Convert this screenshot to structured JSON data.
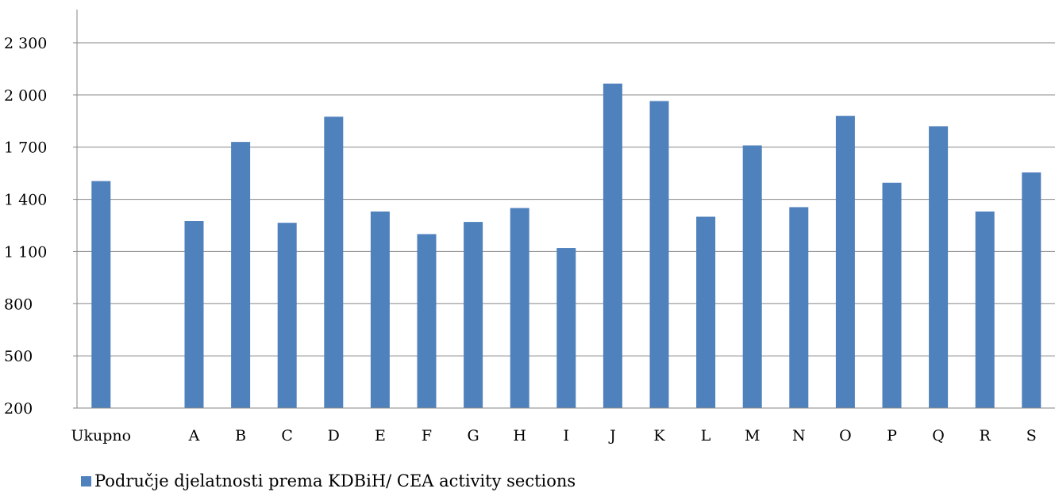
{
  "colors": {
    "bar": "#4f81bd",
    "grid": "#868686",
    "axis": "#868686",
    "text": "#000000"
  },
  "legend": {
    "label": "Područje djelatnosti prema KDBiH/ CEA activity sections"
  },
  "chart_data": {
    "type": "bar",
    "categories": [
      "Ukupno",
      "",
      "A",
      "B",
      "C",
      "D",
      "E",
      "F",
      "G",
      "H",
      "I",
      "J",
      "K",
      "L",
      "M",
      "N",
      "O",
      "P",
      "Q",
      "R",
      "S"
    ],
    "series": [
      {
        "name": "Područje djelatnosti prema KDBiH/ CEA activity sections",
        "values": [
          1505,
          null,
          1275,
          1730,
          1265,
          1875,
          1330,
          1200,
          1270,
          1350,
          1120,
          2065,
          1965,
          1300,
          1710,
          1355,
          1880,
          1495,
          1820,
          1330,
          1555
        ]
      }
    ],
    "yticks": [
      "200",
      "500",
      "800",
      "1 100",
      "1 400",
      "1 700",
      "2 000",
      "2 300"
    ],
    "ylim": [
      200,
      2300
    ],
    "ytick_step": 300,
    "grid": true,
    "legend_position": "bottom"
  }
}
